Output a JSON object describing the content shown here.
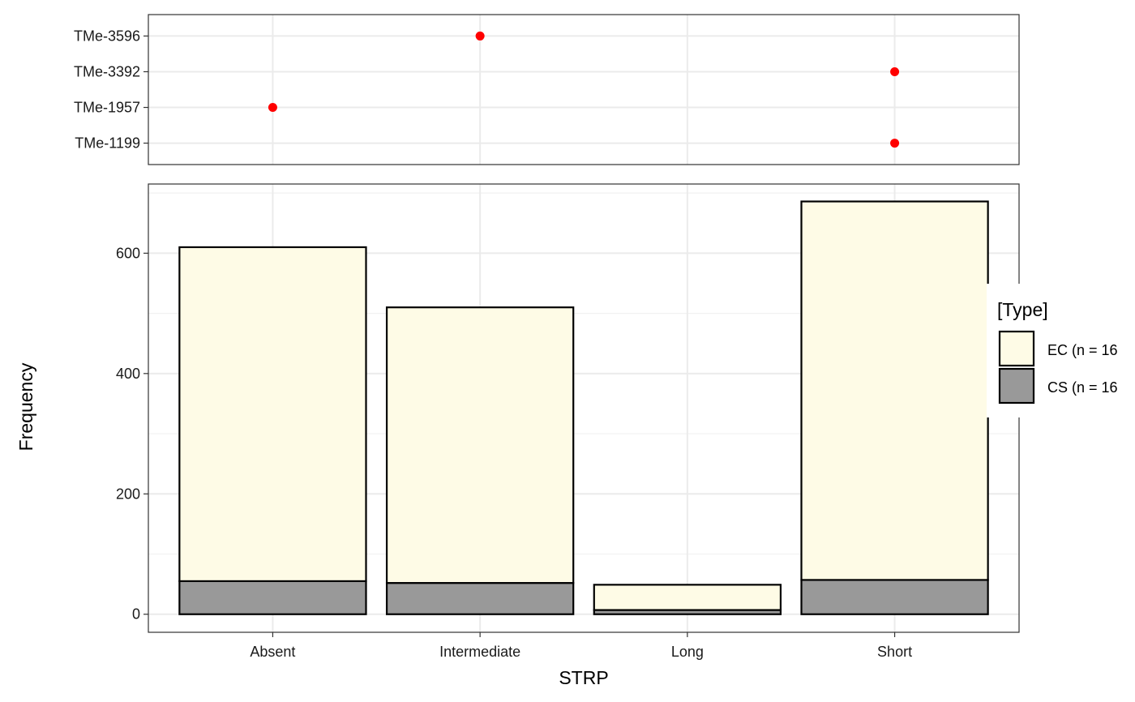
{
  "chart_data": [
    {
      "type": "scatter",
      "panel": "top",
      "x_categories": [
        "Absent",
        "Intermediate",
        "Long",
        "Short"
      ],
      "y_categories": [
        "TMe-1199",
        "TMe-1957",
        "TMe-3392",
        "TMe-3596"
      ],
      "points": [
        {
          "x": "Intermediate",
          "y": "TMe-3596"
        },
        {
          "x": "Short",
          "y": "TMe-3392"
        },
        {
          "x": "Absent",
          "y": "TMe-1957"
        },
        {
          "x": "Short",
          "y": "TMe-1199"
        }
      ],
      "point_color": "#ff0000",
      "grid": true
    },
    {
      "type": "bar",
      "panel": "bottom",
      "stacked": true,
      "categories": [
        "Absent",
        "Intermediate",
        "Long",
        "Short"
      ],
      "series": [
        {
          "name": "CS (n = 16",
          "values": [
            55,
            52,
            7,
            57
          ],
          "color": "#999999"
        },
        {
          "name": "EC (n = 16",
          "values": [
            555,
            458,
            42,
            629
          ],
          "color": "#fefbe6"
        }
      ],
      "xlabel": "STRP",
      "ylabel": "Frequency",
      "ylim": [
        -30,
        715
      ],
      "yticks": [
        0,
        200,
        400,
        600
      ],
      "grid": true,
      "legend": {
        "title": "[Type]",
        "placement": "right",
        "entries": [
          "EC (n = 16",
          "CS (n = 16"
        ]
      }
    }
  ]
}
